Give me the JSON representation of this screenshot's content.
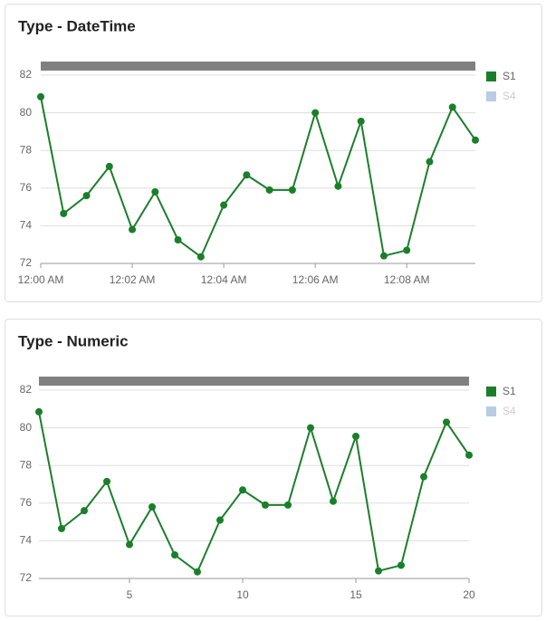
{
  "chart_data": [
    {
      "type": "line",
      "title": "Type - DateTime",
      "x": [
        0,
        0.5,
        1,
        1.5,
        2,
        2.5,
        3,
        3.5,
        4,
        4.5,
        5,
        5.5,
        6,
        6.5,
        7,
        7.5,
        8,
        8.5,
        9,
        9.5
      ],
      "xlim": [
        0,
        9.5
      ],
      "xticks": [
        {
          "value": 0,
          "label": "12:00 AM"
        },
        {
          "value": 2,
          "label": "12:02 AM"
        },
        {
          "value": 4,
          "label": "12:04 AM"
        },
        {
          "value": 6,
          "label": "12:06 AM"
        },
        {
          "value": 8,
          "label": "12:08 AM"
        }
      ],
      "ylim": [
        72,
        82
      ],
      "yticks": [
        72,
        74,
        76,
        78,
        80,
        82
      ],
      "grid": true,
      "series": [
        {
          "name": "S1",
          "color": "#1a7f2a",
          "values": [
            80.85,
            74.65,
            75.6,
            77.15,
            73.8,
            75.8,
            73.25,
            72.35,
            75.1,
            76.7,
            75.9,
            75.9,
            80.0,
            76.1,
            79.55,
            72.4,
            72.7,
            77.4,
            80.3,
            78.55
          ]
        },
        {
          "name": "S4",
          "color": "#b8cce4",
          "visible": false
        }
      ]
    },
    {
      "type": "line",
      "title": "Type - Numeric",
      "x": [
        1,
        2,
        3,
        4,
        5,
        6,
        7,
        8,
        9,
        10,
        11,
        12,
        13,
        14,
        15,
        16,
        17,
        18,
        19,
        20
      ],
      "xlim": [
        1,
        20
      ],
      "xticks": [
        5,
        10,
        15,
        20
      ],
      "ylim": [
        72,
        82
      ],
      "yticks": [
        72,
        74,
        76,
        78,
        80,
        82
      ],
      "grid": true,
      "series": [
        {
          "name": "S1",
          "color": "#1a7f2a",
          "values": [
            80.85,
            74.65,
            75.6,
            77.15,
            73.8,
            75.8,
            73.25,
            72.35,
            75.1,
            76.7,
            75.9,
            75.9,
            80.0,
            76.1,
            79.55,
            72.4,
            72.7,
            77.4,
            80.3,
            78.55
          ]
        },
        {
          "name": "S4",
          "color": "#b8cce4",
          "visible": false
        }
      ]
    }
  ]
}
